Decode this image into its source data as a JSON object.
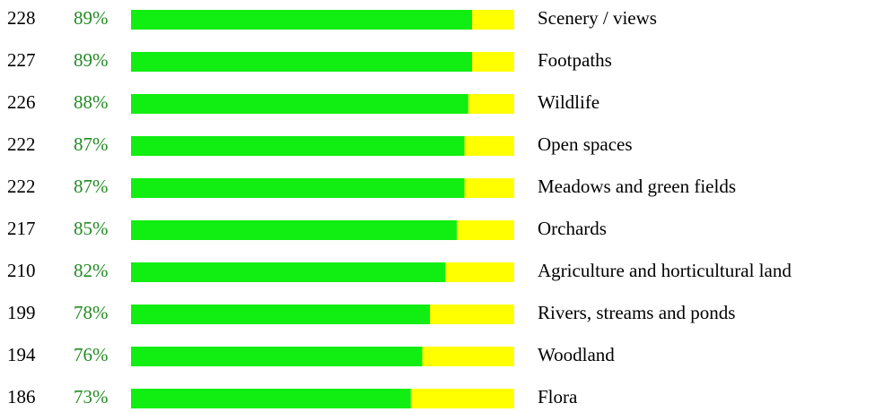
{
  "chart_data": {
    "type": "bar",
    "categories": [
      "Scenery / views",
      "Footpaths",
      "Wildlife",
      "Open spaces",
      "Meadows and green fields",
      "Orchards",
      "Agriculture and horticultural land",
      "Rivers, streams and ponds",
      "Woodland",
      "Flora"
    ],
    "counts": [
      228,
      227,
      226,
      222,
      222,
      217,
      210,
      199,
      194,
      186
    ],
    "values": [
      89,
      89,
      88,
      87,
      87,
      85,
      82,
      78,
      76,
      73
    ],
    "value_labels": [
      "89%",
      "89%",
      "88%",
      "87%",
      "87%",
      "85%",
      "82%",
      "78%",
      "76%",
      "73%"
    ],
    "xlim": [
      0,
      100
    ],
    "color": "#11ee11",
    "remainder_color": "#ffff00",
    "label_color": "#228b22"
  }
}
